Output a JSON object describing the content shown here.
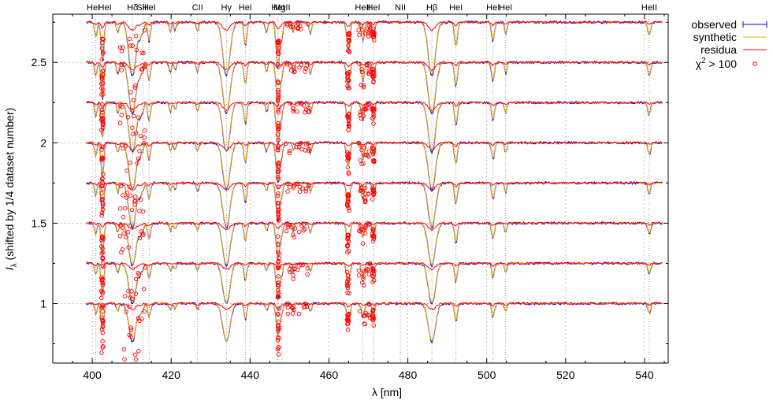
{
  "chart_data": {
    "type": "line",
    "title": "",
    "xlabel": "λ [nm]",
    "ylabel_main": "I",
    "ylabel_sub": "λ",
    "ylabel_rest": " (shifted by 1/4 dataset number)",
    "xlim": [
      390,
      546
    ],
    "ylim": [
      0.63,
      2.8
    ],
    "x_ticks": [
      400,
      420,
      440,
      460,
      480,
      500,
      520,
      540
    ],
    "y_ticks": [
      1,
      1.5,
      2,
      2.5
    ],
    "y_tick_labels": [
      "1",
      "1.5",
      "2",
      "2.5"
    ],
    "grid": true,
    "legend_position": "outside-top-right",
    "legend": [
      {
        "label": "observed",
        "style": "errorbar",
        "color": "#0000ff"
      },
      {
        "label": "synthetic",
        "style": "line",
        "color": "#f0b000"
      },
      {
        "label": "residua",
        "style": "line",
        "color": "#ff0000"
      },
      {
        "label": "χ² > 100",
        "label_main": "χ",
        "label_sup": "2",
        "label_rest": " > 100",
        "style": "circle",
        "color": "#ff0000"
      }
    ],
    "series_offsets": [
      1.0,
      1.25,
      1.5,
      1.75,
      2.0,
      2.25,
      2.5,
      2.75
    ],
    "x_range_data": [
      398.5,
      544.5
    ],
    "line_markers": [
      {
        "x": 400.9,
        "label": "HeI"
      },
      {
        "x": 402.6,
        "label": "HeI"
      },
      {
        "x": 410.2,
        "label": "Hδ"
      },
      {
        "x": 412.8,
        "label": "SiII"
      },
      {
        "x": 414.4,
        "label": "HeI"
      },
      {
        "x": 426.7,
        "label": "CII"
      },
      {
        "x": 434.0,
        "label": "Hγ"
      },
      {
        "x": 438.8,
        "label": "HeI"
      },
      {
        "x": 447.1,
        "label": "HeI"
      },
      {
        "x": 448.1,
        "label": "MgII"
      },
      {
        "x": 468.6,
        "label": "HeII"
      },
      {
        "x": 471.3,
        "label": "HeI"
      },
      {
        "x": 478.1,
        "label": "NII"
      },
      {
        "x": 486.1,
        "label": "Hβ"
      },
      {
        "x": 492.2,
        "label": "HeI"
      },
      {
        "x": 501.6,
        "label": "HeI"
      },
      {
        "x": 504.8,
        "label": "HeI"
      },
      {
        "x": 541.2,
        "label": "HeII"
      }
    ],
    "absorption_features": [
      {
        "center": 400.9,
        "width": 0.3,
        "depth": 0.08
      },
      {
        "center": 402.6,
        "width": 0.35,
        "depth": 0.2
      },
      {
        "center": 406.5,
        "width": 0.3,
        "depth": 0.06
      },
      {
        "center": 410.2,
        "width": 0.9,
        "depth": 0.28
      },
      {
        "center": 412.1,
        "width": 0.3,
        "depth": 0.06
      },
      {
        "center": 412.8,
        "width": 0.3,
        "depth": 0.05
      },
      {
        "center": 414.4,
        "width": 0.35,
        "depth": 0.1
      },
      {
        "center": 419.8,
        "width": 0.3,
        "depth": 0.05
      },
      {
        "center": 421.0,
        "width": 0.3,
        "depth": 0.04
      },
      {
        "center": 426.7,
        "width": 0.3,
        "depth": 0.05
      },
      {
        "center": 434.0,
        "width": 0.9,
        "depth": 0.28
      },
      {
        "center": 438.8,
        "width": 0.35,
        "depth": 0.12
      },
      {
        "center": 444.2,
        "width": 0.3,
        "depth": 0.05
      },
      {
        "center": 447.1,
        "width": 0.45,
        "depth": 0.24
      },
      {
        "center": 448.1,
        "width": 0.3,
        "depth": 0.06
      },
      {
        "center": 451.0,
        "width": 0.3,
        "depth": 0.05
      },
      {
        "center": 455.3,
        "width": 0.3,
        "depth": 0.06
      },
      {
        "center": 464.9,
        "width": 0.4,
        "depth": 0.14
      },
      {
        "center": 468.6,
        "width": 0.35,
        "depth": 0.1
      },
      {
        "center": 471.3,
        "width": 0.3,
        "depth": 0.08
      },
      {
        "center": 486.1,
        "width": 0.9,
        "depth": 0.28
      },
      {
        "center": 492.2,
        "width": 0.35,
        "depth": 0.13
      },
      {
        "center": 501.6,
        "width": 0.35,
        "depth": 0.1
      },
      {
        "center": 504.8,
        "width": 0.3,
        "depth": 0.06
      },
      {
        "center": 541.2,
        "width": 0.35,
        "depth": 0.07
      }
    ],
    "outlier_regions": [
      {
        "from": 402.3,
        "to": 402.8,
        "dips": 0.35
      },
      {
        "from": 407.0,
        "to": 413.5,
        "dips": 0.45
      },
      {
        "from": 447.0,
        "to": 447.3,
        "dips": 0.25
      },
      {
        "from": 449.0,
        "to": 455.0,
        "dips": 0.08
      },
      {
        "from": 464.6,
        "to": 465.2,
        "dips": 0.14
      },
      {
        "from": 467.5,
        "to": 470.5,
        "dips": 0.12
      },
      {
        "from": 471.0,
        "to": 471.5,
        "dips": 0.1
      }
    ]
  }
}
